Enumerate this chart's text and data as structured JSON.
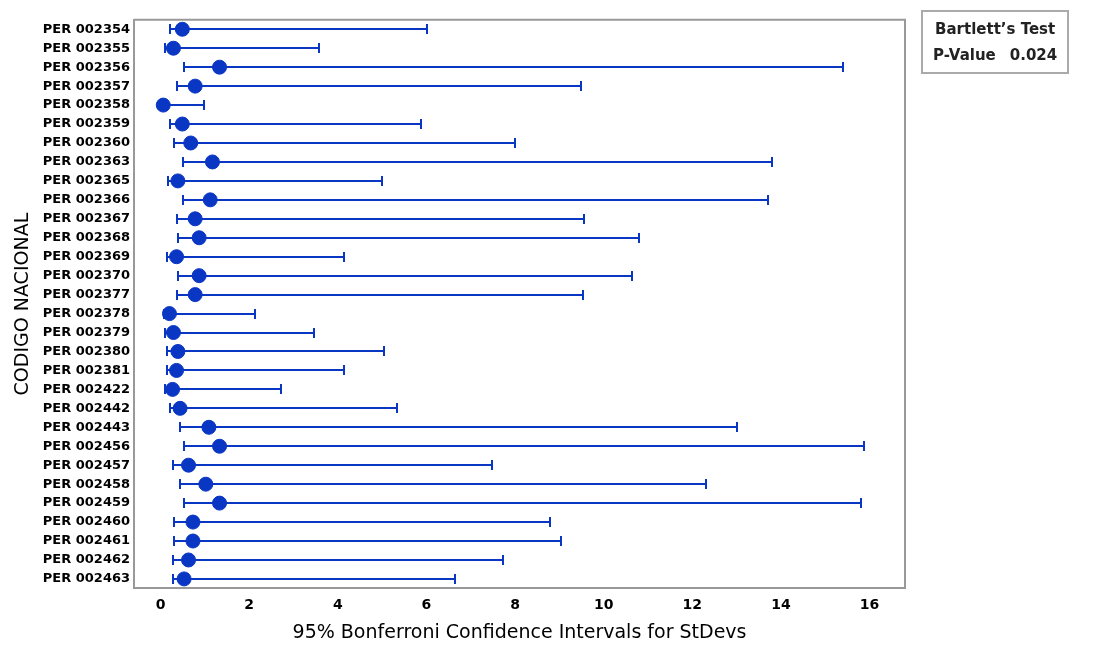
{
  "chart_data": {
    "type": "scatter",
    "orientation": "horizontal",
    "xlabel": "95% Bonferroni Confidence Intervals for StDevs",
    "ylabel": "CODIGO NACIONAL",
    "marker": "circle",
    "color": "#0a36c4",
    "categories": [
      "PER 002354",
      "PER 002355",
      "PER 002356",
      "PER 002357",
      "PER 002358",
      "PER 002359",
      "PER 002360",
      "PER 002363",
      "PER 002365",
      "PER 002366",
      "PER 002367",
      "PER 002368",
      "PER 002369",
      "PER 002370",
      "PER 002377",
      "PER 002378",
      "PER 002379",
      "PER 002380",
      "PER 002381",
      "PER 002422",
      "PER 002442",
      "PER 002443",
      "PER 002456",
      "PER 002457",
      "PER 002458",
      "PER 002459",
      "PER 002460",
      "PER 002461",
      "PER 002462",
      "PER 002463"
    ],
    "values": [
      0.49,
      0.29,
      1.33,
      0.78,
      0.06,
      0.49,
      0.68,
      1.17,
      0.39,
      1.12,
      0.78,
      0.87,
      0.36,
      0.87,
      0.78,
      0.2,
      0.29,
      0.39,
      0.36,
      0.27,
      0.44,
      1.09,
      1.33,
      0.63,
      1.02,
      1.33,
      0.73,
      0.73,
      0.63,
      0.53
    ],
    "errors": [
      [
        0.22,
        6.02
      ],
      [
        0.1,
        3.57
      ],
      [
        0.53,
        15.4
      ],
      [
        0.36,
        9.48
      ],
      [
        0.02,
        0.99
      ],
      [
        0.22,
        5.87
      ],
      [
        0.3,
        8.0
      ],
      [
        0.51,
        13.8
      ],
      [
        0.17,
        4.99
      ],
      [
        0.51,
        13.7
      ],
      [
        0.36,
        9.56
      ],
      [
        0.39,
        10.8
      ],
      [
        0.15,
        4.15
      ],
      [
        0.39,
        10.65
      ],
      [
        0.36,
        9.54
      ],
      [
        0.08,
        2.14
      ],
      [
        0.1,
        3.47
      ],
      [
        0.15,
        5.04
      ],
      [
        0.15,
        4.15
      ],
      [
        0.11,
        2.72
      ],
      [
        0.22,
        5.34
      ],
      [
        0.44,
        13.0
      ],
      [
        0.53,
        15.87
      ],
      [
        0.27,
        7.48
      ],
      [
        0.44,
        12.3
      ],
      [
        0.53,
        15.8
      ],
      [
        0.3,
        8.79
      ],
      [
        0.3,
        9.03
      ],
      [
        0.27,
        7.72
      ],
      [
        0.27,
        6.65
      ]
    ],
    "xlim": [
      -0.6,
      16.8
    ],
    "xticks": [
      0,
      2,
      4,
      6,
      8,
      10,
      12,
      14,
      16
    ],
    "annotations": [
      "Bartlett’s Test",
      "P-Value",
      "0.024"
    ]
  }
}
